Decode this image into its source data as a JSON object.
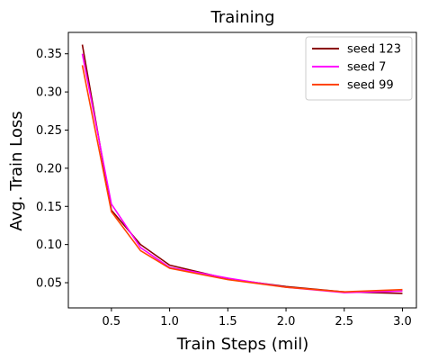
{
  "chart_data": {
    "type": "line",
    "title": "Training",
    "xlabel": "Train Steps (mil)",
    "ylabel": "Avg. Train Loss",
    "xlim": [
      0.13,
      3.12
    ],
    "ylim": [
      0.017,
      0.378
    ],
    "xticks": [
      0.5,
      1.0,
      1.5,
      2.0,
      2.5,
      3.0
    ],
    "xtick_labels": [
      "0.5",
      "1.0",
      "1.5",
      "2.0",
      "2.5",
      "3.0"
    ],
    "yticks": [
      0.05,
      0.1,
      0.15,
      0.2,
      0.25,
      0.3,
      0.35
    ],
    "ytick_labels": [
      "0.05",
      "0.10",
      "0.15",
      "0.20",
      "0.25",
      "0.30",
      "0.35"
    ],
    "grid": false,
    "legend_position": "top-right",
    "x": [
      0.25,
      0.5,
      0.75,
      1.0,
      1.5,
      2.0,
      2.5,
      3.0
    ],
    "series": [
      {
        "name": "seed 123",
        "color": "#8b0000",
        "values": [
          0.362,
          0.145,
          0.1,
          0.073,
          0.055,
          0.045,
          0.038,
          0.036
        ]
      },
      {
        "name": "seed 7",
        "color": "#ff00ff",
        "values": [
          0.35,
          0.153,
          0.096,
          0.07,
          0.056,
          0.044,
          0.037,
          0.039
        ]
      },
      {
        "name": "seed 99",
        "color": "#ff4500",
        "values": [
          0.335,
          0.143,
          0.092,
          0.069,
          0.054,
          0.044,
          0.038,
          0.041
        ]
      }
    ]
  }
}
